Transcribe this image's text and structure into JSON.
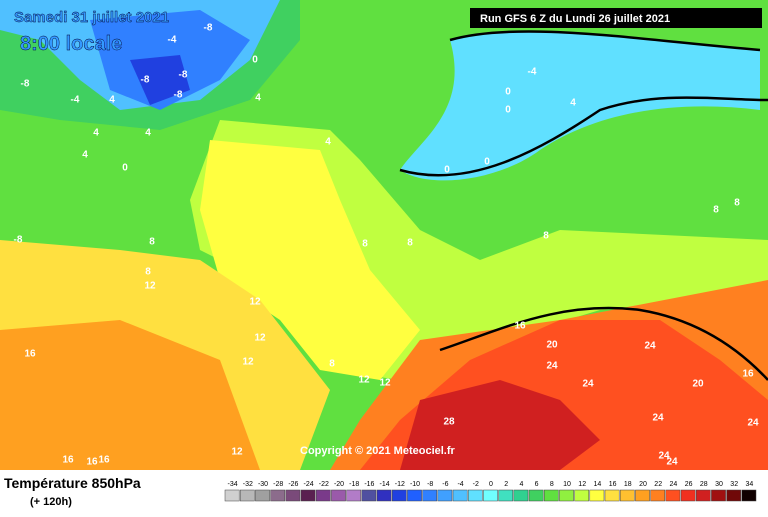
{
  "header": {
    "date": "Samedi 31 juillet 2021",
    "time": "8:00 locale",
    "run": "Run GFS 6 Z du Lundi 26 juillet 2021"
  },
  "copyright": "Copyright © 2021 Meteociel.fr",
  "footer": {
    "title": "Température 850hPa",
    "lead": "(+ 120h)"
  },
  "legend": {
    "ticks": [
      -34,
      -32,
      -30,
      -28,
      -26,
      -24,
      -22,
      -20,
      -18,
      -16,
      -14,
      -12,
      -10,
      -8,
      -6,
      -4,
      -2,
      0,
      2,
      4,
      6,
      8,
      10,
      12,
      14,
      16,
      18,
      20,
      22,
      24,
      26,
      28,
      30,
      32,
      34
    ],
    "colors": [
      "#d0d0d0",
      "#b8b8b8",
      "#a0a0a0",
      "#8c6c8c",
      "#7a4a7a",
      "#5a2050",
      "#7a3a8a",
      "#9a5aaa",
      "#b27cc8",
      "#5050a0",
      "#3030c0",
      "#2040e0",
      "#2060ff",
      "#3080ff",
      "#40a0ff",
      "#50c0ff",
      "#60e0ff",
      "#70ffff",
      "#40e0c0",
      "#30d090",
      "#40d060",
      "#60e040",
      "#90f040",
      "#c0ff40",
      "#ffff40",
      "#ffe040",
      "#ffc030",
      "#ffa020",
      "#ff8020",
      "#ff5020",
      "#f03020",
      "#d02020",
      "#a01010",
      "#700808",
      "#100000"
    ]
  },
  "contour_labels": [
    -4,
    -8,
    -8,
    -8,
    -8,
    -8,
    -4,
    0,
    4,
    4,
    4,
    4,
    0,
    4,
    -8,
    8,
    8,
    12,
    12,
    12,
    16,
    16,
    16,
    16,
    8,
    8,
    8,
    12,
    -4,
    0,
    4,
    0,
    0,
    0,
    4,
    8,
    8,
    8,
    16,
    20,
    24,
    24,
    20,
    16,
    24,
    24,
    28,
    24,
    24,
    12,
    12,
    12,
    24
  ]
}
